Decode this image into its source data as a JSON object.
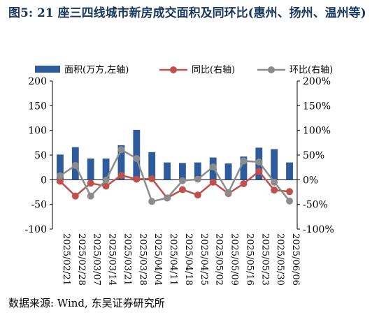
{
  "title": "图5:  21 座三四线城市新房成交面积及同环比(惠州、扬州、温州等)",
  "source": "数据来源:  Wind,  东吴证券研究所",
  "chart_data": {
    "type": "bar",
    "categories": [
      "2025/02/21",
      "2025/02/28",
      "2025/03/07",
      "2025/03/14",
      "2025/03/21",
      "2025/03/28",
      "2025/04/04",
      "2025/04/11",
      "2025/04/18",
      "2025/04/25",
      "2025/05/02",
      "2025/05/09",
      "2025/05/16",
      "2025/05/23",
      "2025/05/30",
      "2025/06/06"
    ],
    "visible_tick_labels": [
      "2025/02/21",
      "2025/02/28",
      "2025/03/07",
      "2025/03/14",
      "2025/03/21",
      "2025/03/28",
      "2025/04/04",
      "2025/04/11",
      "2025/04/18",
      "2025/04/25",
      "2025/05/02",
      "2025/05/09",
      "2025/05/16",
      "2025/05/23",
      "2025/05/30",
      "2025/06/06"
    ],
    "series": [
      {
        "name": "面积(万方,左轴)",
        "type": "bar",
        "axis": "left",
        "values": [
          51,
          66,
          43,
          43,
          70,
          101,
          56,
          35,
          34,
          35,
          45,
          33,
          47,
          65,
          62,
          35
        ]
      },
      {
        "name": "同比(右轴)",
        "type": "line",
        "axis": "right",
        "values": [
          -3,
          -33,
          -7,
          -13,
          9,
          1,
          2,
          -37,
          -20,
          -31,
          -5,
          -28,
          -8,
          17,
          -21,
          -24
        ]
      },
      {
        "name": "环比(右轴)",
        "type": "line",
        "axis": "right",
        "values": [
          8,
          29,
          -33,
          -1,
          61,
          43,
          -44,
          -37,
          -2,
          1,
          26,
          -26,
          38,
          36,
          -5,
          -43
        ]
      }
    ],
    "left_axis": {
      "ylim": [
        -100,
        200
      ],
      "ticks": [
        "-100",
        "-50",
        "0",
        "50",
        "100",
        "150",
        "200"
      ]
    },
    "right_axis": {
      "ylim": [
        -100,
        200
      ],
      "ticks": [
        "-100%",
        "-50%",
        "0%",
        "50%",
        "100%",
        "150%",
        "200%"
      ]
    },
    "legend": {
      "position": "top",
      "items": [
        "面积(万方,左轴)",
        "同比(右轴)",
        "环比(右轴)"
      ]
    },
    "colors": {
      "bar": "#2e5b9b",
      "yoy": "#c0504d",
      "mom": "#8c8c8c"
    },
    "grid": false
  }
}
